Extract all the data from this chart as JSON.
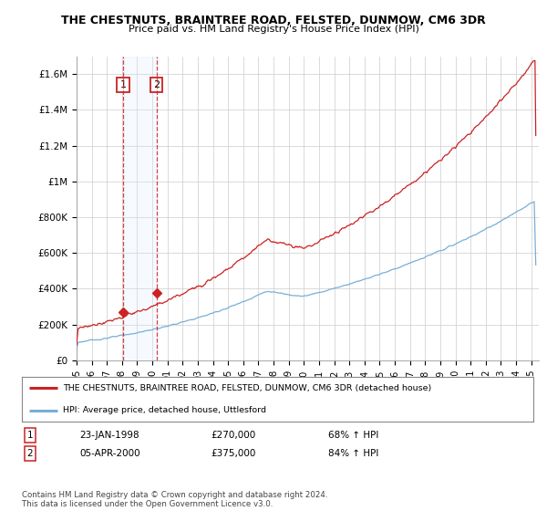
{
  "title": "THE CHESTNUTS, BRAINTREE ROAD, FELSTED, DUNMOW, CM6 3DR",
  "subtitle": "Price paid vs. HM Land Registry's House Price Index (HPI)",
  "xlim": [
    1995.0,
    2025.5
  ],
  "ylim": [
    0,
    1700000
  ],
  "yticks": [
    0,
    200000,
    400000,
    600000,
    800000,
    1000000,
    1200000,
    1400000,
    1600000
  ],
  "ytick_labels": [
    "£0",
    "£200K",
    "£400K",
    "£600K",
    "£800K",
    "£1M",
    "£1.2M",
    "£1.4M",
    "£1.6M"
  ],
  "xtick_years": [
    1995,
    1996,
    1997,
    1998,
    1999,
    2000,
    2001,
    2002,
    2003,
    2004,
    2005,
    2006,
    2007,
    2008,
    2009,
    2010,
    2011,
    2012,
    2013,
    2014,
    2015,
    2016,
    2017,
    2018,
    2019,
    2020,
    2021,
    2022,
    2023,
    2024,
    2025
  ],
  "red_line_color": "#cc2222",
  "blue_line_color": "#7aaed6",
  "marker1_x": 1998.06,
  "marker1_y": 270000,
  "marker2_x": 2000.27,
  "marker2_y": 375000,
  "marker1_label": "1",
  "marker2_label": "2",
  "marker1_date": "23-JAN-1998",
  "marker1_price": "£270,000",
  "marker1_hpi": "68% ↑ HPI",
  "marker2_date": "05-APR-2000",
  "marker2_price": "£375,000",
  "marker2_hpi": "84% ↑ HPI",
  "legend_line1": "THE CHESTNUTS, BRAINTREE ROAD, FELSTED, DUNMOW, CM6 3DR (detached house)",
  "legend_line2": "HPI: Average price, detached house, Uttlesford",
  "footnote": "Contains HM Land Registry data © Crown copyright and database right 2024.\nThis data is licensed under the Open Government Licence v3.0.",
  "background_color": "#ffffff",
  "grid_color": "#cccccc",
  "shade_color": "#ddeeff"
}
